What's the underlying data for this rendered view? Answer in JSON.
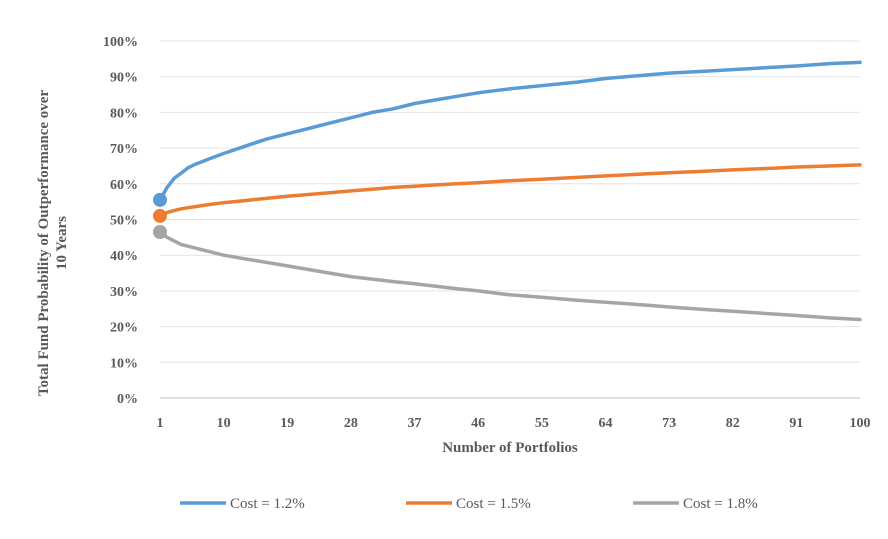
{
  "chart_data": {
    "type": "line",
    "xlabel": "Number  of Portfolios",
    "ylabel_line1": "Total  Fund Probability  of Outperformance  over",
    "ylabel_line2": "10 Years",
    "x_ticks": [
      1,
      10,
      19,
      28,
      37,
      46,
      55,
      64,
      73,
      82,
      91,
      100
    ],
    "xlim": [
      1,
      100
    ],
    "ylim": [
      0,
      100
    ],
    "y_ticks": [
      "0%",
      "10%",
      "20%",
      "30%",
      "40%",
      "50%",
      "60%",
      "70%",
      "80%",
      "90%",
      "100%"
    ],
    "grid": "horizontal",
    "legend_position": "bottom",
    "x": [
      1,
      2,
      3,
      4,
      5,
      6,
      8,
      10,
      13,
      16,
      19,
      22,
      25,
      28,
      31,
      34,
      37,
      40,
      43,
      46,
      50,
      55,
      60,
      64,
      70,
      73,
      78,
      82,
      88,
      91,
      96,
      100
    ],
    "series": [
      {
        "name": "Cost = 1.2%",
        "color": "#5b9bd5",
        "values": [
          55.5,
          59,
          61.5,
          63,
          64.5,
          65.5,
          67,
          68.5,
          70.5,
          72.5,
          74,
          75.5,
          77,
          78.5,
          80,
          81,
          82.5,
          83.5,
          84.5,
          85.5,
          86.5,
          87.5,
          88.5,
          89.5,
          90.5,
          91,
          91.5,
          92,
          92.7,
          93,
          93.7,
          94
        ]
      },
      {
        "name": "Cost = 1.5%",
        "color": "#ed7d31",
        "values": [
          51,
          52,
          52.5,
          53,
          53.3,
          53.6,
          54.2,
          54.7,
          55.3,
          55.9,
          56.5,
          57,
          57.5,
          58,
          58.5,
          59,
          59.3,
          59.7,
          60,
          60.3,
          60.8,
          61.3,
          61.8,
          62.2,
          62.8,
          63.1,
          63.5,
          63.9,
          64.4,
          64.7,
          65,
          65.3
        ]
      },
      {
        "name": "Cost = 1.8%",
        "color": "#a5a5a5",
        "values": [
          46.5,
          45,
          44,
          43,
          42.5,
          42,
          41,
          40,
          39,
          38,
          37,
          36,
          35,
          34,
          33.3,
          32.6,
          32,
          31.3,
          30.6,
          30,
          29,
          28.2,
          27.4,
          26.8,
          26,
          25.5,
          24.8,
          24.3,
          23.5,
          23.1,
          22.4,
          22
        ]
      }
    ]
  }
}
